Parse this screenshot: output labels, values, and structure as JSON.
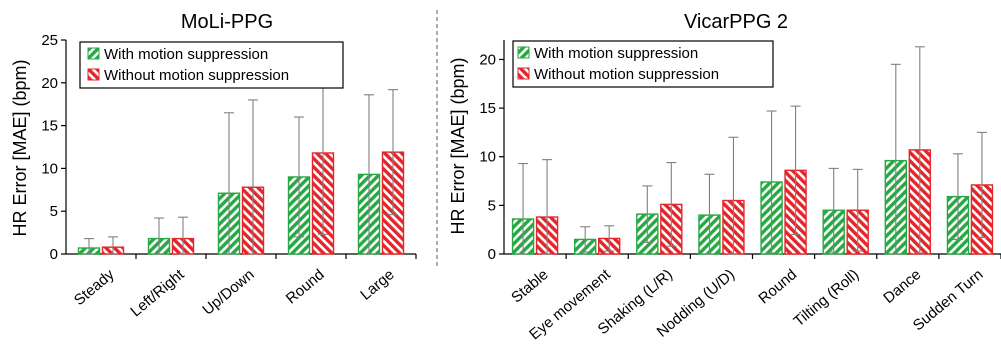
{
  "colors": {
    "with": "#27a844",
    "without": "#e3262b",
    "error_bar": "#808080"
  },
  "chart_data": [
    {
      "type": "bar",
      "title": "MoLi-PPG",
      "xlabel": "",
      "ylabel": "HR Error [MAE] (bpm)",
      "ylim": [
        0,
        25
      ],
      "yticks": [
        0,
        5,
        10,
        15,
        20,
        25
      ],
      "grid": false,
      "legend": "top-left",
      "categories": [
        "Steady",
        "Left/Right",
        "Up/Down",
        "Round",
        "Large"
      ],
      "series": [
        {
          "name": "With motion suppression",
          "values": [
            0.7,
            1.8,
            7.1,
            9.0,
            9.3
          ],
          "errors": [
            1.1,
            2.4,
            9.4,
            7.0,
            9.3
          ]
        },
        {
          "name": "Without motion suppression",
          "values": [
            0.8,
            1.8,
            7.8,
            11.8,
            11.9
          ],
          "errors": [
            1.2,
            2.5,
            10.2,
            9.5,
            7.3
          ]
        }
      ]
    },
    {
      "type": "bar",
      "title": "VicarPPG 2",
      "xlabel": "",
      "ylabel": "HR Error [MAE] (bpm)",
      "ylim": [
        0,
        22
      ],
      "yticks": [
        0,
        5,
        10,
        15,
        20
      ],
      "grid": false,
      "legend": "top-left",
      "categories": [
        "Stable",
        "Eye movement",
        "Shaking (L/R)",
        "Nodding (U/D)",
        "Round",
        "Tilting (Roll)",
        "Dance",
        "Sudden Turn"
      ],
      "series": [
        {
          "name": "With motion suppression",
          "values": [
            3.6,
            1.5,
            4.1,
            4.0,
            7.4,
            4.5,
            9.6,
            5.9
          ],
          "errors": [
            5.7,
            1.3,
            2.9,
            4.2,
            7.3,
            4.3,
            9.9,
            4.4
          ]
        },
        {
          "name": "Without motion suppression",
          "values": [
            3.8,
            1.6,
            5.1,
            5.5,
            8.6,
            4.5,
            10.7,
            7.1
          ],
          "errors": [
            5.9,
            1.3,
            4.3,
            6.5,
            6.6,
            4.2,
            10.6,
            5.4
          ]
        }
      ]
    }
  ]
}
